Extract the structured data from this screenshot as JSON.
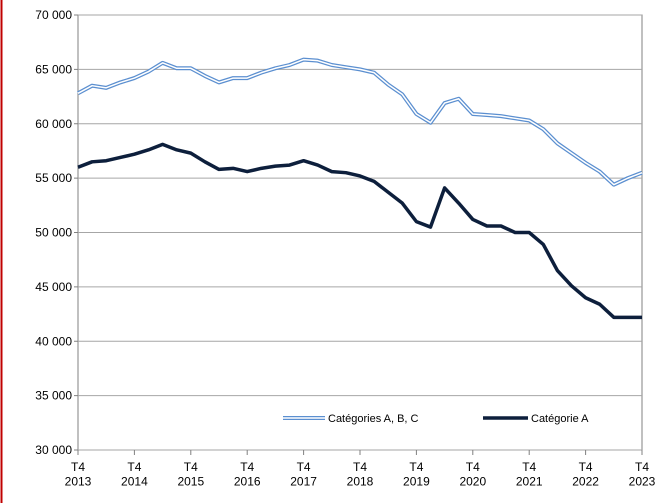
{
  "chart_data": {
    "type": "line",
    "categories": [
      "T4\n2013",
      null,
      null,
      null,
      "T4\n2014",
      null,
      null,
      null,
      "T4\n2015",
      null,
      null,
      null,
      "T4\n2016",
      null,
      null,
      null,
      "T4\n2017",
      null,
      null,
      null,
      "T4\n2018",
      null,
      null,
      null,
      "T4\n2019",
      null,
      null,
      null,
      "T4\n2020",
      null,
      null,
      null,
      "T4\n2021",
      null,
      null,
      null,
      "T4\n2022",
      null,
      null,
      null,
      "T4\n2023"
    ],
    "series": [
      {
        "name": "Catégories A, B, C",
        "color": "#5b8fd0",
        "style": "double",
        "values": [
          62800,
          63500,
          63300,
          63800,
          64200,
          64800,
          65600,
          65100,
          65100,
          64400,
          63800,
          64200,
          64200,
          64700,
          65100,
          65400,
          65900,
          65800,
          65400,
          65200,
          65000,
          64700,
          63600,
          62700,
          60900,
          60100,
          61900,
          62300,
          60900,
          60800,
          60700,
          60500,
          60300,
          59500,
          58200,
          57300,
          56400,
          55600,
          54400,
          55000,
          55500
        ]
      },
      {
        "name": "Catégorie A",
        "color": "#0d1f3c",
        "style": "solid",
        "values": [
          56000,
          56500,
          56600,
          56900,
          57200,
          57600,
          58100,
          57600,
          57300,
          56500,
          55800,
          55900,
          55600,
          55900,
          56100,
          56200,
          56600,
          56200,
          55600,
          55500,
          55200,
          54700,
          53700,
          52700,
          51000,
          50500,
          54100,
          52700,
          51200,
          50600,
          50600,
          50000,
          50000,
          48900,
          46500,
          45100,
          44000,
          43400,
          42200,
          42200,
          42200
        ]
      }
    ],
    "ylim": [
      30000,
      70000
    ],
    "yticks": [
      {
        "value": 30000,
        "label": "30 000"
      },
      {
        "value": 35000,
        "label": "35 000"
      },
      {
        "value": 40000,
        "label": "40 000"
      },
      {
        "value": 45000,
        "label": "45 000"
      },
      {
        "value": 50000,
        "label": "50 000"
      },
      {
        "value": 55000,
        "label": "55 000"
      },
      {
        "value": 60000,
        "label": "60 000"
      },
      {
        "value": 65000,
        "label": "65 000"
      },
      {
        "value": 70000,
        "label": "70 000"
      }
    ],
    "grid": true,
    "legend": "bottom"
  }
}
